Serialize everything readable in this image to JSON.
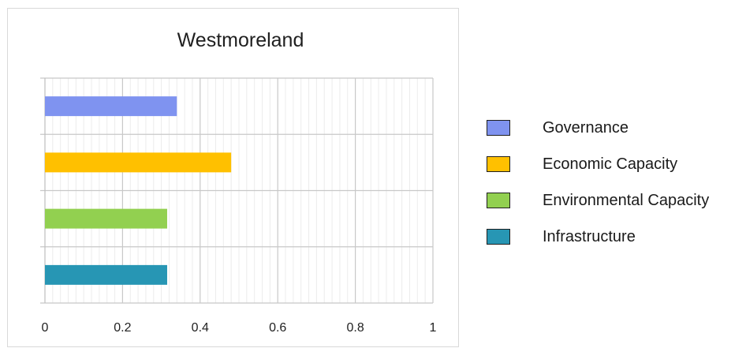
{
  "chart_data": {
    "type": "bar",
    "orientation": "horizontal",
    "title": "Westmoreland",
    "xlabel": "",
    "ylabel": "",
    "xlim": [
      0,
      1
    ],
    "x_ticks": [
      "0",
      "0.2",
      "0.4",
      "0.6",
      "0.8",
      "1"
    ],
    "grid": true,
    "legend_position": "right",
    "categories": [
      "Governance",
      "Economic Capacity",
      "Environmental Capacity",
      "Infrastructure"
    ],
    "values": [
      0.34,
      0.48,
      0.315,
      0.315
    ],
    "colors": [
      "#7f93f0",
      "#ffc000",
      "#92d050",
      "#2796b4"
    ]
  },
  "legend": {
    "items": [
      {
        "label": "Governance",
        "color": "#7f93f0"
      },
      {
        "label": "Economic Capacity",
        "color": "#ffc000"
      },
      {
        "label": "Environmental Capacity",
        "color": "#92d050"
      },
      {
        "label": "Infrastructure",
        "color": "#2796b4"
      }
    ]
  }
}
